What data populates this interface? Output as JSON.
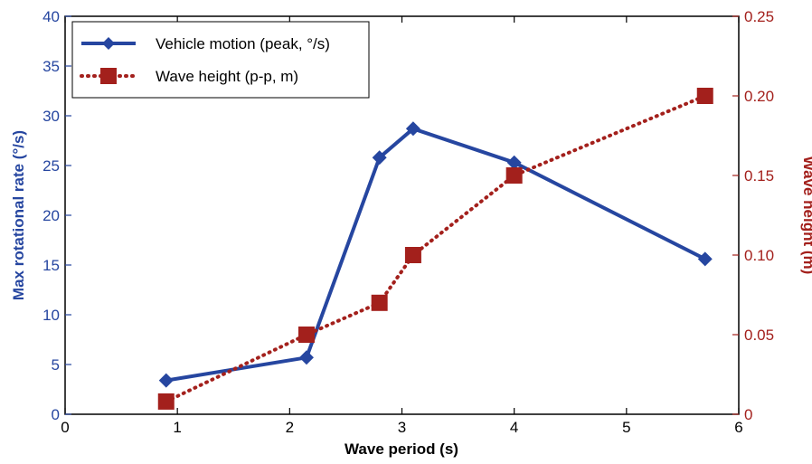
{
  "chart_data": {
    "type": "line",
    "title": "",
    "xlabel": "Wave period (s)",
    "ylabel_left": "Max rotational rate (°/s)",
    "ylabel_right": "Wave height (m)",
    "xlim": [
      0,
      6
    ],
    "ylim_left": [
      0,
      40
    ],
    "ylim_right": [
      0,
      0.25
    ],
    "x_ticks": [
      "0",
      "1",
      "2",
      "3",
      "4",
      "5",
      "6"
    ],
    "y_left_ticks": [
      "0",
      "5",
      "10",
      "15",
      "20",
      "25",
      "30",
      "35",
      "40"
    ],
    "y_right_ticks": [
      "0",
      "0.05",
      "0.10",
      "0.15",
      "0.20",
      "0.25"
    ],
    "grid": false,
    "legend_position": "top-left",
    "colors": {
      "left_axis": "#2646a0",
      "right_axis": "#a3201c"
    },
    "series": [
      {
        "name": "Vehicle motion (peak, °/s)",
        "axis": "left",
        "style": "solid",
        "marker": "diamond",
        "color": "#2646a0",
        "x": [
          0.9,
          2.15,
          2.8,
          3.1,
          4.0,
          5.7
        ],
        "values": [
          3.4,
          5.7,
          25.8,
          28.7,
          25.3,
          15.6
        ]
      },
      {
        "name": "Wave height (p-p, m)",
        "axis": "right",
        "style": "dotted",
        "marker": "square",
        "color": "#a3201c",
        "x": [
          0.9,
          2.15,
          2.8,
          3.1,
          4.0,
          5.7
        ],
        "values": [
          0.008,
          0.05,
          0.07,
          0.1,
          0.15,
          0.2
        ]
      }
    ]
  }
}
